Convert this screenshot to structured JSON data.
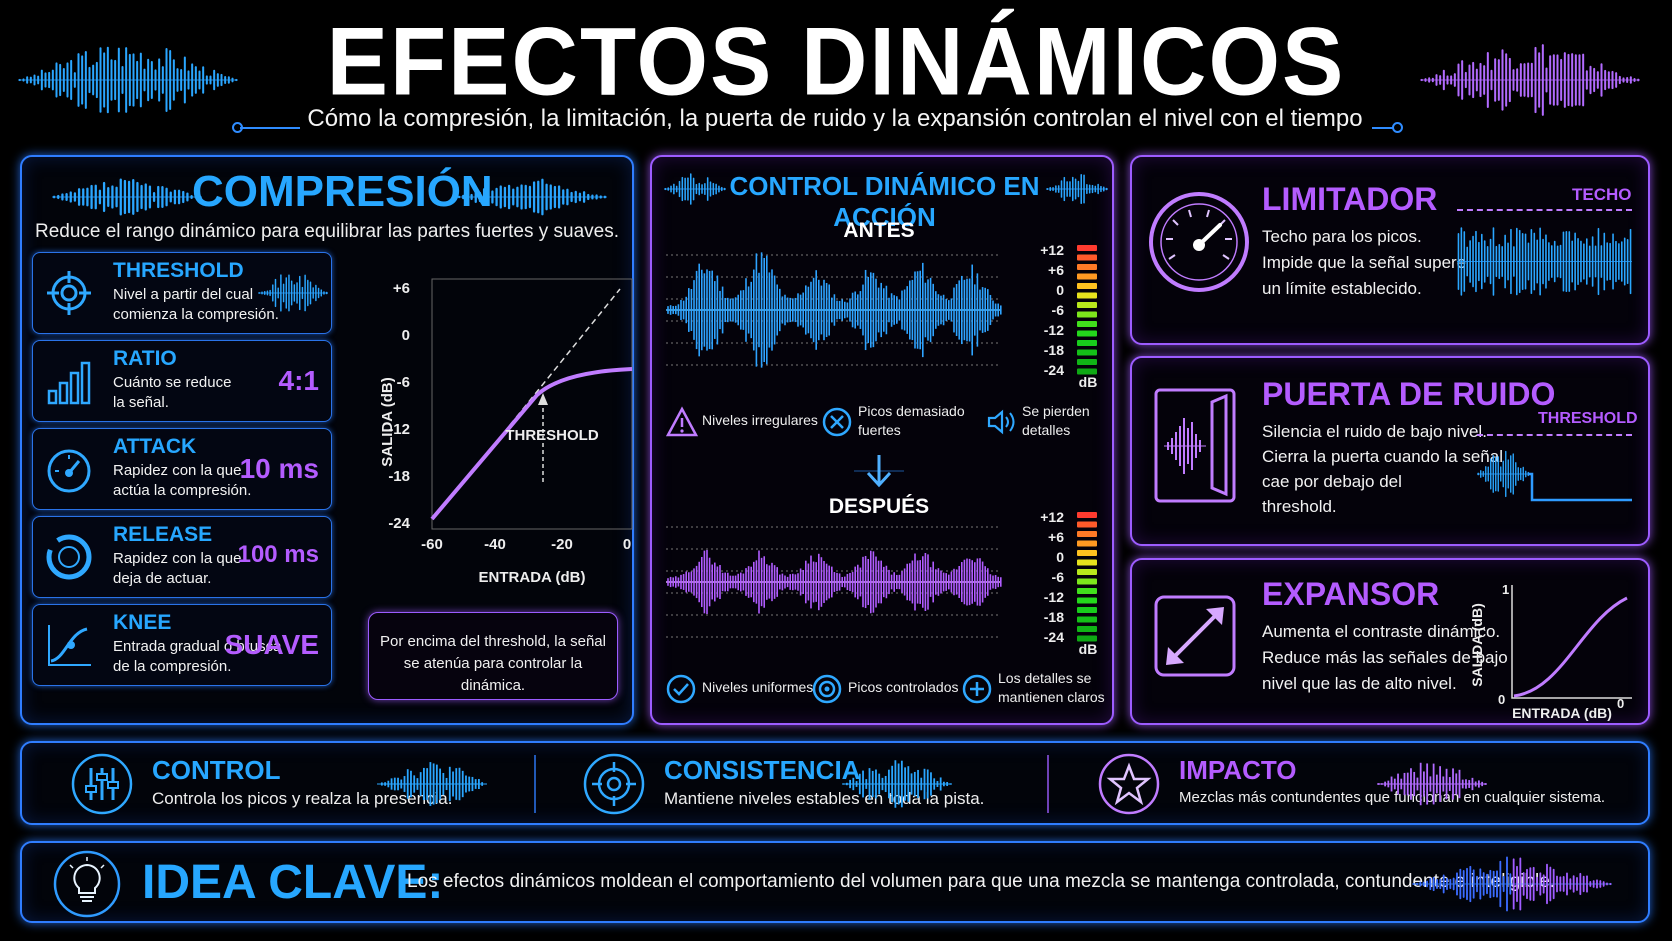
{
  "header": {
    "title": "EFECTOS DINÁMICOS",
    "subtitle": "Cómo la compresión, la limitación, la puerta de ruido y la expansión controlan el nivel con el tiempo"
  },
  "compression": {
    "title": "COMPRESIÓN",
    "description": "Reduce el rango dinámico para equilibrar las partes fuertes y suaves.",
    "params": [
      {
        "name": "THRESHOLD",
        "desc1": "Nivel a partir del cual",
        "desc2": "comienza la compresión.",
        "value": "",
        "icon": "crosshair-icon"
      },
      {
        "name": "RATIO",
        "desc1": "Cuánto se reduce",
        "desc2": "la señal.",
        "value": "4:1",
        "icon": "bars-icon"
      },
      {
        "name": "ATTACK",
        "desc1": "Rapidez con la que",
        "desc2": "actúa la compresión.",
        "value": "10 ms",
        "icon": "gauge-icon"
      },
      {
        "name": "RELEASE",
        "desc1": "Rapidez con la que",
        "desc2": "deja de actuar.",
        "value": "100 ms",
        "icon": "dial-icon"
      },
      {
        "name": "KNEE",
        "desc1": "Entrada gradual o brusca",
        "desc2": "de la compresión.",
        "value": "SUAVE",
        "icon": "curve-icon"
      }
    ],
    "graph": {
      "ylabel": "SALIDA (dB)",
      "xlabel": "ENTRADA (dB)",
      "yticks": [
        "+6",
        "0",
        "-6",
        "-12",
        "-18",
        "-24"
      ],
      "xticks": [
        "-60",
        "-40",
        "-20",
        "0"
      ],
      "threshold_label": "THRESHOLD"
    },
    "note": "Por encima del threshold, la señal se atenúa para controlar la dinámica."
  },
  "center": {
    "title": "CONTROL DINÁMICO EN ACCIÓN",
    "before_label": "ANTES",
    "after_label": "DESPUÉS",
    "meter_ticks": [
      "+12",
      "+6",
      "0",
      "-6",
      "-12",
      "-18",
      "-24"
    ],
    "meter_unit": "dB",
    "problems": [
      {
        "text1": "Niveles irregulares",
        "text2": "",
        "icon": "warning-icon"
      },
      {
        "text1": "Picos demasiado",
        "text2": "fuertes",
        "icon": "x-circle-icon"
      },
      {
        "text1": "Se pierden",
        "text2": "detalles",
        "icon": "speaker-icon"
      }
    ],
    "results": [
      {
        "text1": "Niveles uniformes",
        "text2": "",
        "icon": "check-icon"
      },
      {
        "text1": "Picos controlados",
        "text2": "",
        "icon": "target-icon"
      },
      {
        "text1": "Los detalles se",
        "text2": "mantienen claros",
        "icon": "plus-icon"
      }
    ]
  },
  "limiter": {
    "title": "LIMITADOR",
    "ceiling_label": "TECHO",
    "desc1": "Techo para los picos.",
    "desc2": "Impide que la señal supere",
    "desc3": "un límite establecido."
  },
  "gate": {
    "title": "PUERTA DE RUIDO",
    "threshold_label": "THRESHOLD",
    "desc1": "Silencia el ruido de bajo nivel.",
    "desc2": "Cierra la puerta cuando la señal",
    "desc3": "cae por debajo del",
    "desc4": "threshold."
  },
  "expander": {
    "title": "EXPANSOR",
    "desc1": "Aumenta el contraste dinámico.",
    "desc2": "Reduce más las señales de bajo",
    "desc3": "nivel que las de alto nivel.",
    "ylabel": "SALIDA (dB)",
    "xlabel": "ENTRADA (dB)",
    "y_top": "1",
    "origin": "0",
    "x_right": "0"
  },
  "benefits": [
    {
      "title": "CONTROL",
      "desc": "Controla los picos y realza la presencia.",
      "icon": "sliders-icon"
    },
    {
      "title": "CONSISTENCIA",
      "desc": "Mantiene niveles estables en toda la pista.",
      "icon": "crosshair-icon"
    },
    {
      "title": "IMPACTO",
      "desc": "Mezclas más contundentes que funcionan en cualquier sistema.",
      "icon": "star-icon"
    }
  ],
  "key_idea": {
    "title": "IDEA CLAVE:",
    "text": "Los efectos dinámicos moldean el comportamiento del volumen para que una mezcla se mantenga controlada, contundente e inteligible."
  }
}
